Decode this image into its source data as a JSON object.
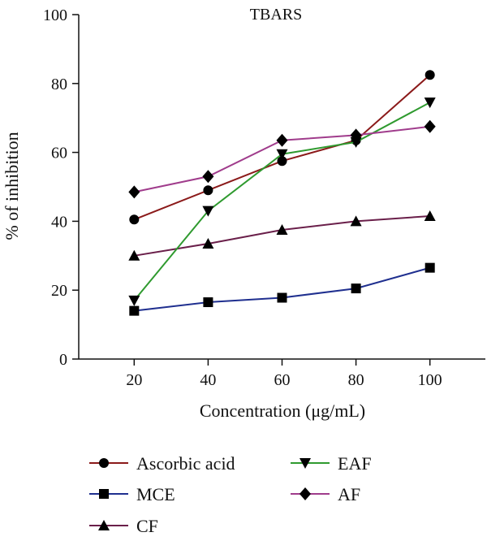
{
  "chart_data": {
    "type": "line",
    "title": "TBARS",
    "xlabel": "Concentration (μg/mL)",
    "ylabel": "% of inhibition",
    "xlim": [
      5,
      115
    ],
    "ylim": [
      0,
      100
    ],
    "x_ticks": [
      20,
      40,
      60,
      80,
      100
    ],
    "y_ticks": [
      0,
      20,
      40,
      60,
      80,
      100
    ],
    "grid": false,
    "legend_position": "bottom",
    "series": [
      {
        "name": "Ascorbic acid",
        "marker": "circle",
        "color": "#8b1a1a",
        "x": [
          20,
          40,
          60,
          80,
          100
        ],
        "values": [
          40.5,
          49,
          57.5,
          63.5,
          82.5
        ]
      },
      {
        "name": "MCE",
        "marker": "square",
        "color": "#1f2f8f",
        "x": [
          20,
          40,
          60,
          80,
          100
        ],
        "values": [
          14,
          16.5,
          17.8,
          20.5,
          26.5
        ]
      },
      {
        "name": "CF",
        "marker": "triangle-up",
        "color": "#6a1f4a",
        "x": [
          20,
          40,
          60,
          80,
          100
        ],
        "values": [
          30,
          33.5,
          37.5,
          40,
          41.5
        ]
      },
      {
        "name": "EAF",
        "marker": "triangle-down",
        "color": "#2f9a2f",
        "x": [
          20,
          40,
          60,
          80,
          100
        ],
        "values": [
          17,
          43,
          59.5,
          63,
          74.5
        ]
      },
      {
        "name": "AF",
        "marker": "diamond",
        "color": "#a03c8c",
        "x": [
          20,
          40,
          60,
          80,
          100
        ],
        "values": [
          48.5,
          53,
          63.5,
          65,
          67.5
        ]
      }
    ]
  }
}
